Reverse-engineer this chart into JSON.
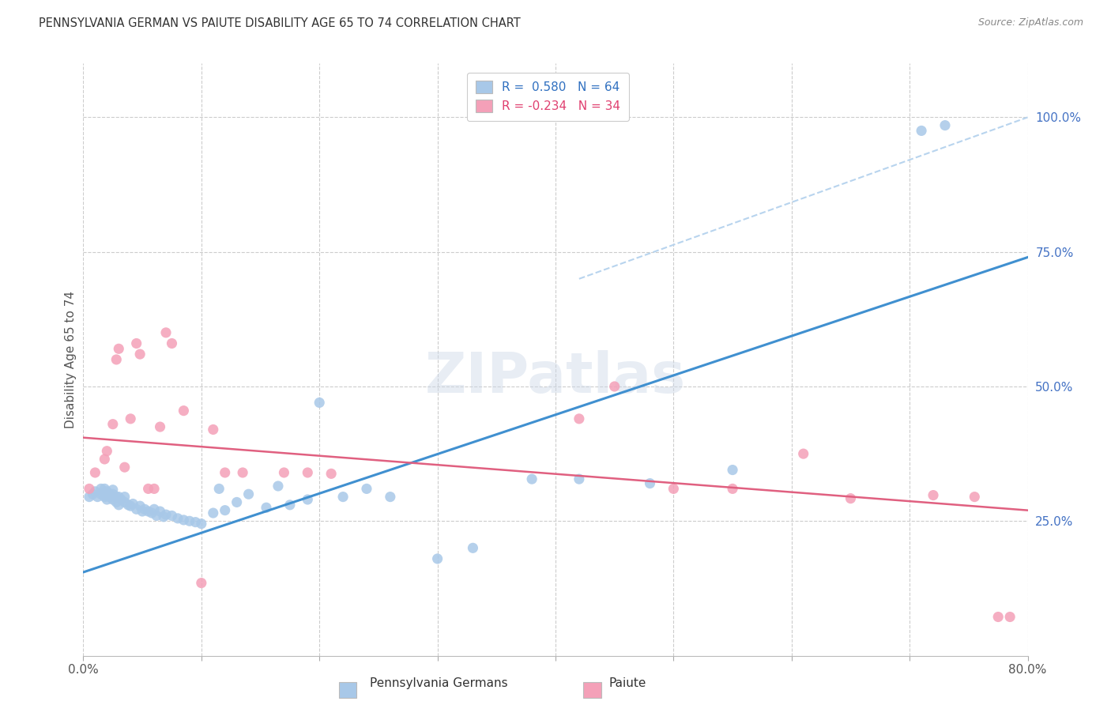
{
  "title": "PENNSYLVANIA GERMAN VS PAIUTE DISABILITY AGE 65 TO 74 CORRELATION CHART",
  "source": "Source: ZipAtlas.com",
  "ylabel": "Disability Age 65 to 74",
  "x_min": 0.0,
  "x_max": 0.8,
  "y_min": 0.0,
  "y_max": 1.1,
  "x_ticks": [
    0.0,
    0.1,
    0.2,
    0.3,
    0.4,
    0.5,
    0.6,
    0.7,
    0.8
  ],
  "x_tick_labels": [
    "0.0%",
    "",
    "",
    "",
    "",
    "",
    "",
    "",
    "80.0%"
  ],
  "y_ticks": [
    0.25,
    0.5,
    0.75,
    1.0
  ],
  "y_tick_labels_right": [
    "25.0%",
    "50.0%",
    "75.0%",
    "100.0%"
  ],
  "legend_r1": "R =  0.580",
  "legend_n1": "N = 64",
  "legend_r2": "R = -0.234",
  "legend_n2": "N = 34",
  "blue_color": "#a8c8e8",
  "pink_color": "#f4a0b8",
  "line_blue": "#4090d0",
  "line_pink": "#e06080",
  "dashed_line_color": "#b8d4ee",
  "watermark_text": "ZIPatlas",
  "blue_scatter_x": [
    0.005,
    0.008,
    0.01,
    0.012,
    0.015,
    0.015,
    0.018,
    0.018,
    0.02,
    0.02,
    0.02,
    0.022,
    0.022,
    0.025,
    0.025,
    0.025,
    0.028,
    0.028,
    0.03,
    0.03,
    0.032,
    0.035,
    0.035,
    0.038,
    0.04,
    0.042,
    0.045,
    0.048,
    0.05,
    0.052,
    0.055,
    0.058,
    0.06,
    0.062,
    0.065,
    0.068,
    0.07,
    0.075,
    0.08,
    0.085,
    0.09,
    0.095,
    0.1,
    0.11,
    0.115,
    0.12,
    0.13,
    0.14,
    0.155,
    0.165,
    0.175,
    0.19,
    0.2,
    0.22,
    0.24,
    0.26,
    0.3,
    0.33,
    0.38,
    0.42,
    0.48,
    0.55,
    0.71,
    0.73
  ],
  "blue_scatter_y": [
    0.295,
    0.3,
    0.305,
    0.295,
    0.3,
    0.31,
    0.295,
    0.31,
    0.29,
    0.298,
    0.305,
    0.295,
    0.3,
    0.29,
    0.3,
    0.308,
    0.285,
    0.295,
    0.28,
    0.295,
    0.29,
    0.285,
    0.295,
    0.28,
    0.278,
    0.282,
    0.272,
    0.278,
    0.268,
    0.272,
    0.268,
    0.265,
    0.272,
    0.26,
    0.268,
    0.258,
    0.262,
    0.26,
    0.255,
    0.252,
    0.25,
    0.248,
    0.245,
    0.265,
    0.31,
    0.27,
    0.285,
    0.3,
    0.275,
    0.315,
    0.28,
    0.29,
    0.47,
    0.295,
    0.31,
    0.295,
    0.18,
    0.2,
    0.328,
    0.328,
    0.32,
    0.345,
    0.975,
    0.985
  ],
  "pink_scatter_x": [
    0.005,
    0.01,
    0.018,
    0.02,
    0.025,
    0.028,
    0.03,
    0.035,
    0.04,
    0.045,
    0.048,
    0.055,
    0.06,
    0.065,
    0.07,
    0.075,
    0.085,
    0.1,
    0.11,
    0.12,
    0.135,
    0.17,
    0.19,
    0.21,
    0.42,
    0.45,
    0.5,
    0.55,
    0.61,
    0.65,
    0.72,
    0.755,
    0.775,
    0.785
  ],
  "pink_scatter_y": [
    0.31,
    0.34,
    0.365,
    0.38,
    0.43,
    0.55,
    0.57,
    0.35,
    0.44,
    0.58,
    0.56,
    0.31,
    0.31,
    0.425,
    0.6,
    0.58,
    0.455,
    0.135,
    0.42,
    0.34,
    0.34,
    0.34,
    0.34,
    0.338,
    0.44,
    0.5,
    0.31,
    0.31,
    0.375,
    0.292,
    0.298,
    0.295,
    0.072,
    0.072
  ],
  "blue_trend_x": [
    0.0,
    0.8
  ],
  "blue_trend_y": [
    0.155,
    0.74
  ],
  "pink_trend_x": [
    0.0,
    0.8
  ],
  "pink_trend_y": [
    0.405,
    0.27
  ],
  "dashed_trend_x": [
    0.42,
    0.8
  ],
  "dashed_trend_y": [
    0.7,
    1.0
  ],
  "background_color": "#ffffff",
  "grid_color": "#cccccc"
}
